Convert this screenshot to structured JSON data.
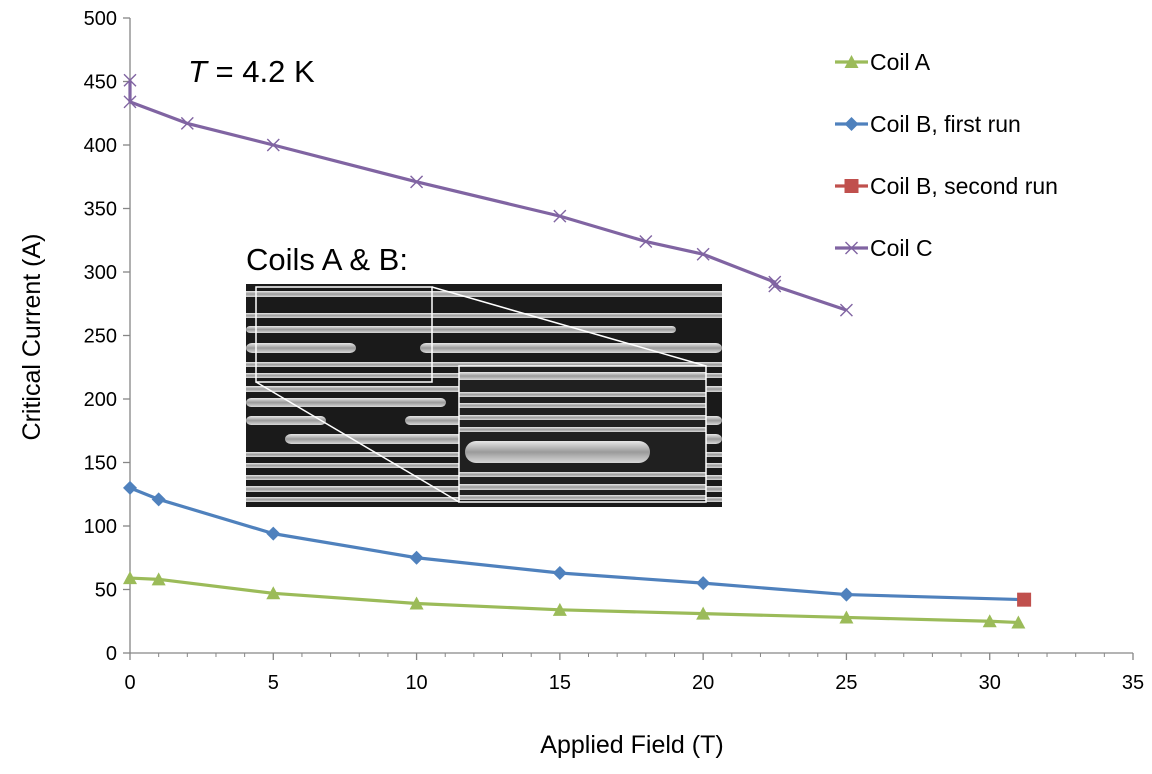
{
  "chart_data": {
    "type": "line",
    "title": "",
    "xlabel": "Applied Field (T)",
    "ylabel": "Critical Current (A)",
    "xlim": [
      0,
      35
    ],
    "ylim": [
      0,
      500
    ],
    "x_ticks": [
      0,
      5,
      10,
      15,
      20,
      25,
      30,
      35
    ],
    "y_ticks": [
      0,
      50,
      100,
      150,
      200,
      250,
      300,
      350,
      400,
      450,
      500
    ],
    "grid": false,
    "legend_position": "top-right",
    "series": [
      {
        "name": "Coil A",
        "color": "#9BBB59",
        "marker": "triangle",
        "x": [
          0,
          1,
          5,
          10,
          15,
          20,
          25,
          30,
          31
        ],
        "y": [
          59,
          58,
          47,
          39,
          34,
          31,
          28,
          25,
          24
        ]
      },
      {
        "name": "Coil B, first run",
        "color": "#4F81BD",
        "marker": "diamond",
        "x": [
          0,
          1,
          5,
          10,
          15,
          20,
          25,
          31.2
        ],
        "y": [
          130,
          121,
          94,
          75,
          63,
          55,
          46,
          42
        ]
      },
      {
        "name": "Coil B, second run",
        "color": "#C0504D",
        "marker": "square",
        "x": [
          31.2
        ],
        "y": [
          42
        ]
      },
      {
        "name": "Coil C",
        "color": "#8064A2",
        "marker": "x",
        "x": [
          0,
          0,
          2,
          5,
          10,
          15,
          18,
          20,
          22.5,
          22.5,
          25
        ],
        "y": [
          451,
          434,
          417,
          400,
          371,
          344,
          324,
          314,
          292,
          289,
          270
        ]
      }
    ],
    "annotations": {
      "temperature_var": "T",
      "temperature_value": " = 4.2 K",
      "inset_label": "Coils A & B:"
    }
  }
}
